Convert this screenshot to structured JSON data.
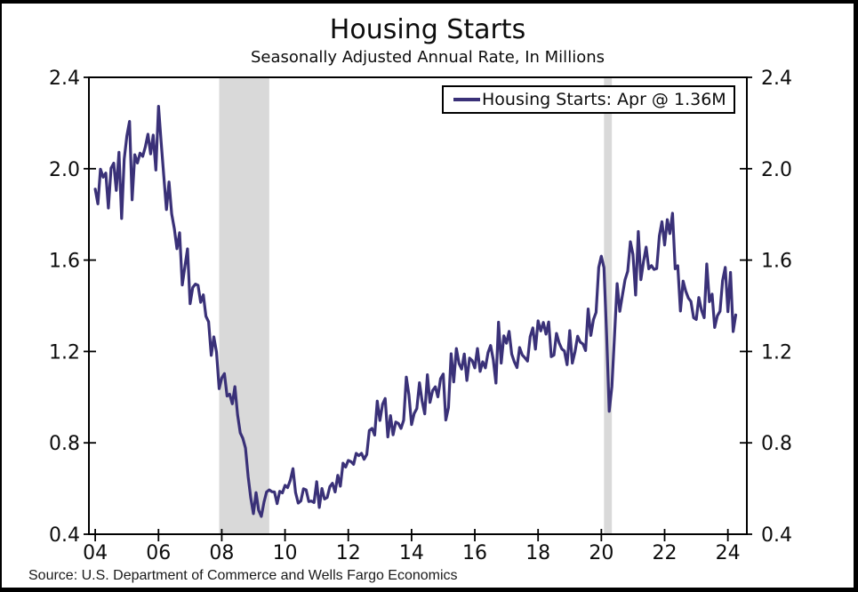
{
  "header": {
    "title": "Housing Starts",
    "subtitle": "Seasonally Adjusted Annual Rate, In Millions"
  },
  "legend": {
    "label": "Housing Starts: Apr @ 1.36M"
  },
  "footer": {
    "source": "Source: U.S. Department of Commerce and Wells Fargo Economics"
  },
  "chart_data": {
    "type": "line",
    "title": "Housing Starts",
    "subtitle": "Seasonally Adjusted Annual Rate, In Millions",
    "legend_entries": [
      "Housing Starts: Apr @ 1.36M"
    ],
    "latest_point": {
      "period": "Apr 2024",
      "value_millions": 1.36
    },
    "ylim": [
      0.4,
      2.4
    ],
    "yticks": [
      0.4,
      0.8,
      1.2,
      1.6,
      2.0,
      2.4
    ],
    "ytick_labels": [
      "0.4",
      "0.8",
      "1.2",
      "1.6",
      "2.0",
      "2.4"
    ],
    "xlim": [
      2003.8,
      2024.6
    ],
    "xticks": [
      {
        "t": 2004,
        "label": "04"
      },
      {
        "t": 2006,
        "label": "06"
      },
      {
        "t": 2008,
        "label": "08"
      },
      {
        "t": 2010,
        "label": "10"
      },
      {
        "t": 2012,
        "label": "12"
      },
      {
        "t": 2014,
        "label": "14"
      },
      {
        "t": 2016,
        "label": "16"
      },
      {
        "t": 2018,
        "label": "18"
      },
      {
        "t": 2020,
        "label": "20"
      },
      {
        "t": 2022,
        "label": "22"
      },
      {
        "t": 2024,
        "label": "24"
      }
    ],
    "grid": false,
    "legend_position": "top-right",
    "recessions": [
      [
        2007.917,
        2009.5
      ],
      [
        2020.083,
        2020.333
      ]
    ],
    "colors": {
      "line": "#3a3178",
      "recession": "#d9d9d9",
      "axis": "#000000"
    },
    "series": [
      {
        "name": "Housing Starts",
        "start_year": 2004,
        "start_month": 1,
        "frequency": "monthly",
        "units": "millions, SAAR",
        "values": [
          1.911,
          1.846,
          1.998,
          1.963,
          1.981,
          1.828,
          2.002,
          2.024,
          1.905,
          2.072,
          1.782,
          2.042,
          2.144,
          2.207,
          1.864,
          2.061,
          2.025,
          2.068,
          2.054,
          2.095,
          2.151,
          2.065,
          2.147,
          1.994,
          2.273,
          2.119,
          1.969,
          1.821,
          1.942,
          1.802,
          1.737,
          1.65,
          1.72,
          1.491,
          1.57,
          1.649,
          1.409,
          1.48,
          1.495,
          1.49,
          1.415,
          1.448,
          1.354,
          1.33,
          1.183,
          1.264,
          1.197,
          1.037,
          1.084,
          1.103,
          1.005,
          1.013,
          0.971,
          1.046,
          0.923,
          0.844,
          0.82,
          0.777,
          0.652,
          0.56,
          0.49,
          0.582,
          0.505,
          0.478,
          0.54,
          0.585,
          0.594,
          0.586,
          0.585,
          0.534,
          0.588,
          0.581,
          0.614,
          0.604,
          0.636,
          0.687,
          0.583,
          0.536,
          0.546,
          0.599,
          0.594,
          0.543,
          0.545,
          0.539,
          0.63,
          0.517,
          0.6,
          0.554,
          0.561,
          0.608,
          0.623,
          0.585,
          0.658,
          0.61,
          0.711,
          0.694,
          0.723,
          0.718,
          0.706,
          0.754,
          0.744,
          0.754,
          0.728,
          0.749,
          0.854,
          0.863,
          0.834,
          0.983,
          0.898,
          0.969,
          0.994,
          0.826,
          0.919,
          0.835,
          0.891,
          0.885,
          0.863,
          0.899,
          1.088,
          1.01,
          0.88,
          0.928,
          0.95,
          1.063,
          0.984,
          0.927,
          1.098,
          0.977,
          1.029,
          1.045,
          1.001,
          1.081,
          1.101,
          0.9,
          0.954,
          1.19,
          1.067,
          1.213,
          1.147,
          1.123,
          1.189,
          1.073,
          1.171,
          1.16,
          1.128,
          1.213,
          1.113,
          1.155,
          1.128,
          1.195,
          1.226,
          1.164,
          1.062,
          1.328,
          1.149,
          1.268,
          1.236,
          1.288,
          1.189,
          1.154,
          1.129,
          1.217,
          1.185,
          1.172,
          1.158,
          1.265,
          1.303,
          1.21,
          1.334,
          1.29,
          1.327,
          1.276,
          1.329,
          1.177,
          1.184,
          1.279,
          1.237,
          1.211,
          1.202,
          1.142,
          1.291,
          1.149,
          1.199,
          1.267,
          1.241,
          1.233,
          1.204,
          1.386,
          1.27,
          1.34,
          1.371,
          1.568,
          1.617,
          1.567,
          1.269,
          0.938,
          1.046,
          1.273,
          1.497,
          1.376,
          1.448,
          1.514,
          1.551,
          1.68,
          1.625,
          1.447,
          1.725,
          1.514,
          1.594,
          1.657,
          1.562,
          1.576,
          1.559,
          1.563,
          1.706,
          1.768,
          1.666,
          1.777,
          1.716,
          1.805,
          1.562,
          1.575,
          1.377,
          1.508,
          1.465,
          1.434,
          1.419,
          1.348,
          1.34,
          1.436,
          1.38,
          1.348,
          1.583,
          1.418,
          1.451,
          1.305,
          1.356,
          1.376,
          1.51,
          1.568,
          1.374,
          1.546,
          1.287,
          1.36
        ]
      }
    ]
  }
}
